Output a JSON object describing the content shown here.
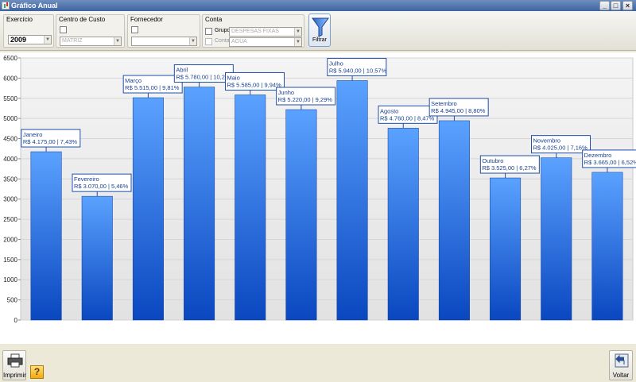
{
  "window": {
    "title": "Gráfico Anual"
  },
  "filters": {
    "exercicio": {
      "label": "Exercício",
      "value": "2009"
    },
    "centro_custo": {
      "label": "Centro de Custo",
      "value": "MATRIZ"
    },
    "fornecedor": {
      "label": "Fornecedor",
      "value": ""
    },
    "conta": {
      "label": "Conta",
      "grupo_label": "Grupo",
      "grupo_value": "DESPESAS FIXAS",
      "conta_label": "Conta",
      "conta_value": "AGUA"
    },
    "filter_button": "Filtrar"
  },
  "buttons": {
    "print": "Imprimir",
    "back": "Voltar"
  },
  "chart_data": {
    "type": "bar",
    "ylim": [
      0,
      6500
    ],
    "yticks": [
      "0",
      "500",
      "1000",
      "1500",
      "2000",
      "2500",
      "3000",
      "3500",
      "4000",
      "4500",
      "5000",
      "5500",
      "6000",
      "6500"
    ],
    "categories": [
      "Janeiro",
      "Fevereiro",
      "Março",
      "Abril",
      "Maio",
      "Junho",
      "Julho",
      "Agosto",
      "Setembro",
      "Outubro",
      "Novembro",
      "Dezembro"
    ],
    "values": [
      4175,
      3070,
      5515,
      5780,
      5585,
      5220,
      5940,
      4760,
      4945,
      3525,
      4025,
      3665
    ],
    "labels": [
      "R$ 4.175,00 | 7,43%",
      "R$ 3.070,00 | 5,46%",
      "R$ 5.515,00 | 9,81%",
      "R$ 5.780,00 | 10,28%",
      "R$ 5.585,00 | 9,94%",
      "R$ 5.220,00 | 9,29%",
      "R$ 5.940,00 | 10,57%",
      "R$ 4.760,00 | 8,47%",
      "R$ 4.945,00 | 8,80%",
      "R$ 3.525,00 | 6,27%",
      "R$ 4.025,00 | 7,16%",
      "R$ 3.665,00 | 6,52%"
    ],
    "colors": {
      "bar_top": "#5ba2ff",
      "bar_bottom": "#0a47c0",
      "label_border": "#1f4fa8",
      "label_text": "#1a3f8f"
    }
  }
}
